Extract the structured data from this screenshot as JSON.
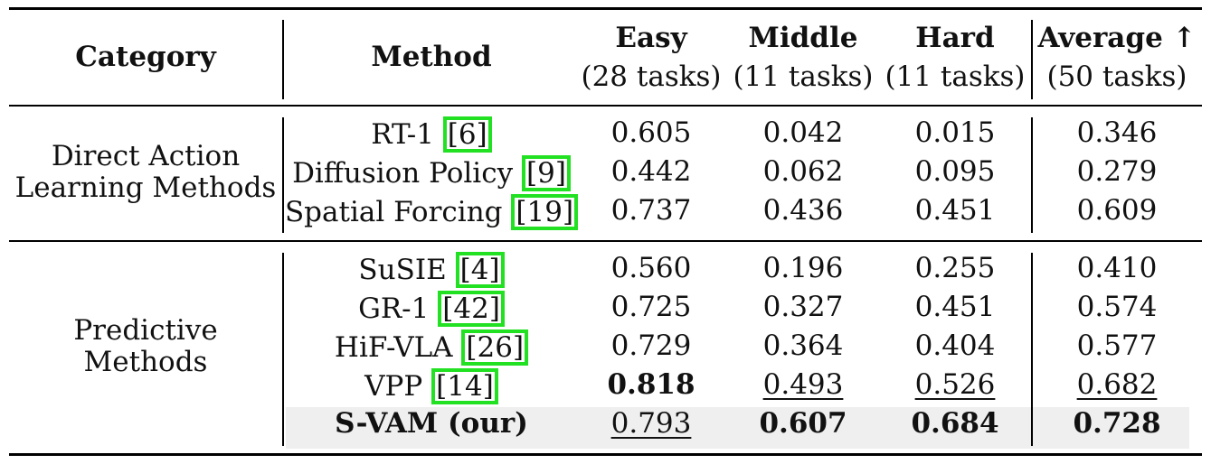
{
  "header": {
    "category": "Category",
    "method": "Method",
    "columns": [
      {
        "name": "Easy",
        "sub": "(28 tasks)"
      },
      {
        "name": "Middle",
        "sub": "(11 tasks)"
      },
      {
        "name": "Hard",
        "sub": "(11 tasks)"
      },
      {
        "name": "Average ↑",
        "sub": "(50 tasks)"
      }
    ]
  },
  "groups": [
    {
      "category_lines": [
        "Direct Action",
        "Learning Methods"
      ],
      "rows": [
        {
          "method": "RT-1",
          "cite": "6",
          "values": [
            "0.605",
            "0.042",
            "0.015",
            "0.346"
          ]
        },
        {
          "method": "Diffusion Policy",
          "cite": "9",
          "values": [
            "0.442",
            "0.062",
            "0.095",
            "0.279"
          ]
        },
        {
          "method": "Spatial Forcing",
          "cite": "19",
          "values": [
            "0.737",
            "0.436",
            "0.451",
            "0.609"
          ]
        }
      ]
    },
    {
      "category_lines": [
        "Predictive",
        "Methods"
      ],
      "rows": [
        {
          "method": "SuSIE",
          "cite": "4",
          "values": [
            "0.560",
            "0.196",
            "0.255",
            "0.410"
          ]
        },
        {
          "method": "GR-1",
          "cite": "42",
          "values": [
            "0.725",
            "0.327",
            "0.451",
            "0.574"
          ]
        },
        {
          "method": "HiF-VLA",
          "cite": "26",
          "values": [
            "0.729",
            "0.364",
            "0.404",
            "0.577"
          ]
        },
        {
          "method": "VPP",
          "cite": "14",
          "values": [
            "0.818",
            "0.493",
            "0.526",
            "0.682"
          ]
        },
        {
          "method": "S-VAM (our)",
          "cite": "",
          "values": [
            "0.793",
            "0.607",
            "0.684",
            "0.728"
          ]
        }
      ]
    }
  ],
  "best": [
    "1-3-0",
    "1-4-1",
    "1-4-2",
    "1-4-3"
  ],
  "second": [
    "1-4-0",
    "1-3-1",
    "1-3-2",
    "1-3-3"
  ],
  "highlight_row": "1-4",
  "colors": {
    "citation_box": "#22e022",
    "highlight": "#efefef",
    "text": "#111111"
  }
}
